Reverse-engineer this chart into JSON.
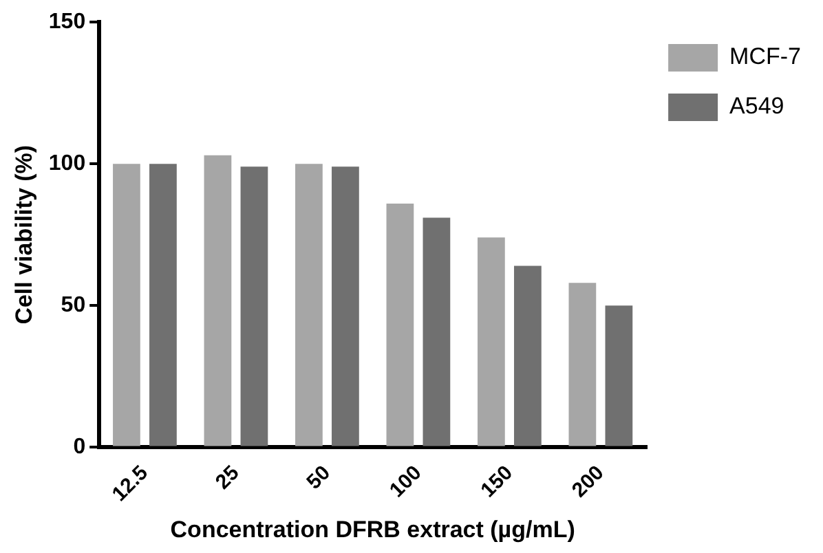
{
  "chart_data": {
    "type": "bar",
    "xlabel": "Concentration DFRB extract (µg/mL)",
    "ylabel": "Cell viability (%)",
    "categories": [
      "12.5",
      "25",
      "50",
      "100",
      "150",
      "200"
    ],
    "series": [
      {
        "name": "MCF-7",
        "color": "#a6a6a6",
        "values": [
          100,
          103,
          100,
          86,
          74,
          58
        ]
      },
      {
        "name": "A549",
        "color": "#707070",
        "values": [
          100,
          99,
          99,
          81,
          64,
          50
        ]
      }
    ],
    "ylim": [
      0,
      150
    ],
    "yticks": [
      0,
      50,
      100,
      150
    ],
    "grid": false,
    "legend": "top right"
  }
}
